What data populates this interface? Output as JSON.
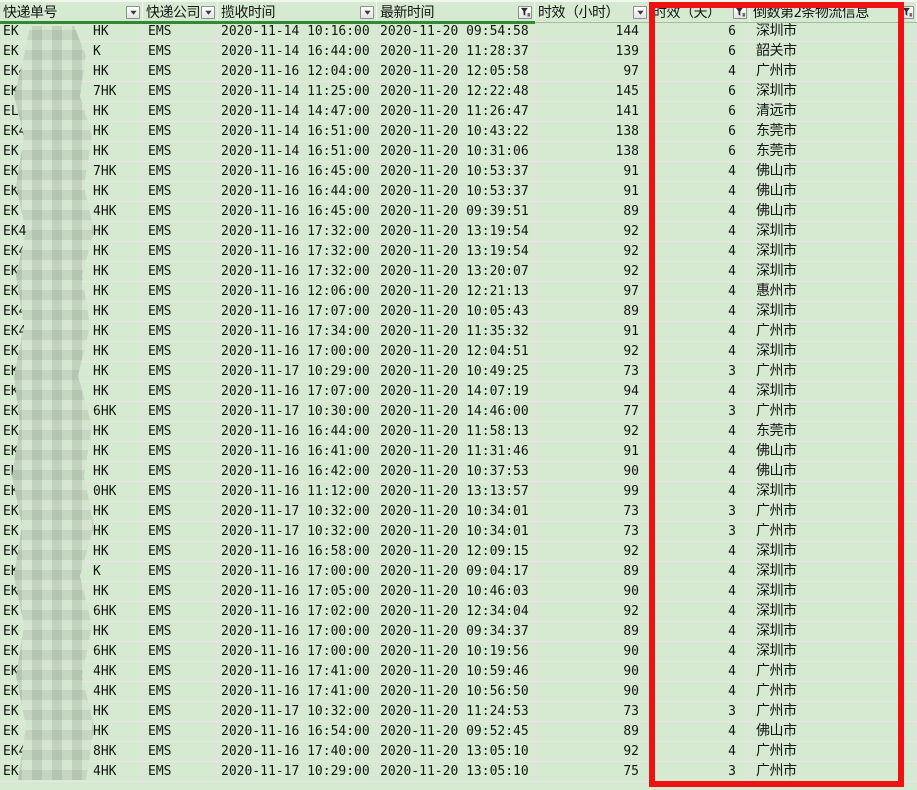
{
  "table": {
    "columns": [
      {
        "label": "快递单号",
        "filter": "dropdown"
      },
      {
        "label": "快递公司",
        "filter": "dropdown"
      },
      {
        "label": "揽收时间",
        "filter": "dropdown"
      },
      {
        "label": "最新时间",
        "filter": "funnel"
      },
      {
        "label": "时效（小时）",
        "filter": "dropdown"
      },
      {
        "label": "时效（天）",
        "filter": "funnel"
      },
      {
        "label": "倒数第2条物流信息",
        "filter": "funnel"
      }
    ],
    "rows": [
      {
        "tracking_prefix": "EK",
        "tracking_suffix": "HK",
        "company": "EMS",
        "pickup_time": "2020-11-14 10:16:00",
        "latest_time": "2020-11-20 09:54:58",
        "hours": "144",
        "days": "6",
        "city": "深圳市"
      },
      {
        "tracking_prefix": "EK",
        "tracking_suffix": "K",
        "company": "EMS",
        "pickup_time": "2020-11-14 16:44:00",
        "latest_time": "2020-11-20 11:28:37",
        "hours": "139",
        "days": "6",
        "city": "韶关市"
      },
      {
        "tracking_prefix": "EK4",
        "tracking_suffix": "HK",
        "company": "EMS",
        "pickup_time": "2020-11-16 12:04:00",
        "latest_time": "2020-11-20 12:05:58",
        "hours": "97",
        "days": "4",
        "city": "广州市"
      },
      {
        "tracking_prefix": "EK",
        "tracking_suffix": "7HK",
        "company": "EMS",
        "pickup_time": "2020-11-14 11:25:00",
        "latest_time": "2020-11-20 12:22:48",
        "hours": "145",
        "days": "6",
        "city": "深圳市"
      },
      {
        "tracking_prefix": "EL6",
        "tracking_suffix": "HK",
        "company": "EMS",
        "pickup_time": "2020-11-14 14:47:00",
        "latest_time": "2020-11-20 11:26:47",
        "hours": "141",
        "days": "6",
        "city": "清远市"
      },
      {
        "tracking_prefix": "EK4",
        "tracking_suffix": "HK",
        "company": "EMS",
        "pickup_time": "2020-11-14 16:51:00",
        "latest_time": "2020-11-20 10:43:22",
        "hours": "138",
        "days": "6",
        "city": "东莞市"
      },
      {
        "tracking_prefix": "EK",
        "tracking_suffix": "HK",
        "company": "EMS",
        "pickup_time": "2020-11-14 16:51:00",
        "latest_time": "2020-11-20 10:31:06",
        "hours": "138",
        "days": "6",
        "city": "东莞市"
      },
      {
        "tracking_prefix": "EK4",
        "tracking_suffix": "7HK",
        "company": "EMS",
        "pickup_time": "2020-11-16 16:45:00",
        "latest_time": "2020-11-20 10:53:37",
        "hours": "91",
        "days": "4",
        "city": "佛山市"
      },
      {
        "tracking_prefix": "EK4",
        "tracking_suffix": "HK",
        "company": "EMS",
        "pickup_time": "2020-11-16 16:44:00",
        "latest_time": "2020-11-20 10:53:37",
        "hours": "91",
        "days": "4",
        "city": "佛山市"
      },
      {
        "tracking_prefix": "EK",
        "tracking_suffix": "4HK",
        "company": "EMS",
        "pickup_time": "2020-11-16 16:45:00",
        "latest_time": "2020-11-20 09:39:51",
        "hours": "89",
        "days": "4",
        "city": "佛山市"
      },
      {
        "tracking_prefix": "EK4",
        "tracking_suffix": "HK",
        "company": "EMS",
        "pickup_time": "2020-11-16 17:32:00",
        "latest_time": "2020-11-20 13:19:54",
        "hours": "92",
        "days": "4",
        "city": "深圳市"
      },
      {
        "tracking_prefix": "EK4",
        "tracking_suffix": "HK",
        "company": "EMS",
        "pickup_time": "2020-11-16 17:32:00",
        "latest_time": "2020-11-20 13:19:54",
        "hours": "92",
        "days": "4",
        "city": "深圳市"
      },
      {
        "tracking_prefix": "EK4",
        "tracking_suffix": "HK",
        "company": "EMS",
        "pickup_time": "2020-11-16 17:32:00",
        "latest_time": "2020-11-20 13:20:07",
        "hours": "92",
        "days": "4",
        "city": "深圳市"
      },
      {
        "tracking_prefix": "EK4",
        "tracking_suffix": "HK",
        "company": "EMS",
        "pickup_time": "2020-11-16 12:06:00",
        "latest_time": "2020-11-20 12:21:13",
        "hours": "97",
        "days": "4",
        "city": "惠州市"
      },
      {
        "tracking_prefix": "EK4",
        "tracking_suffix": "HK",
        "company": "EMS",
        "pickup_time": "2020-11-16 17:07:00",
        "latest_time": "2020-11-20 10:05:43",
        "hours": "89",
        "days": "4",
        "city": "深圳市"
      },
      {
        "tracking_prefix": "EK4",
        "tracking_suffix": "HK",
        "company": "EMS",
        "pickup_time": "2020-11-16 17:34:00",
        "latest_time": "2020-11-20 11:35:32",
        "hours": "91",
        "days": "4",
        "city": "广州市"
      },
      {
        "tracking_prefix": "EK4",
        "tracking_suffix": "HK",
        "company": "EMS",
        "pickup_time": "2020-11-16 17:00:00",
        "latest_time": "2020-11-20 12:04:51",
        "hours": "92",
        "days": "4",
        "city": "深圳市"
      },
      {
        "tracking_prefix": "EK4",
        "tracking_suffix": "HK",
        "company": "EMS",
        "pickup_time": "2020-11-17 10:29:00",
        "latest_time": "2020-11-20 10:49:25",
        "hours": "73",
        "days": "3",
        "city": "广州市"
      },
      {
        "tracking_prefix": "EK",
        "tracking_suffix": "HK",
        "company": "EMS",
        "pickup_time": "2020-11-16 17:07:00",
        "latest_time": "2020-11-20 14:07:19",
        "hours": "94",
        "days": "4",
        "city": "深圳市"
      },
      {
        "tracking_prefix": "EK",
        "tracking_suffix": "6HK",
        "company": "EMS",
        "pickup_time": "2020-11-17 10:30:00",
        "latest_time": "2020-11-20 14:46:00",
        "hours": "77",
        "days": "3",
        "city": "广州市"
      },
      {
        "tracking_prefix": "EK4",
        "tracking_suffix": "HK",
        "company": "EMS",
        "pickup_time": "2020-11-16 16:44:00",
        "latest_time": "2020-11-20 11:58:13",
        "hours": "92",
        "days": "4",
        "city": "东莞市"
      },
      {
        "tracking_prefix": "EK4",
        "tracking_suffix": "HK",
        "company": "EMS",
        "pickup_time": "2020-11-16 16:41:00",
        "latest_time": "2020-11-20 11:31:46",
        "hours": "91",
        "days": "4",
        "city": "佛山市"
      },
      {
        "tracking_prefix": "EK",
        "tracking_suffix": "HK",
        "company": "EMS",
        "pickup_time": "2020-11-16 16:42:00",
        "latest_time": "2020-11-20 10:37:53",
        "hours": "90",
        "days": "4",
        "city": "佛山市"
      },
      {
        "tracking_prefix": "EK",
        "tracking_suffix": "0HK",
        "company": "EMS",
        "pickup_time": "2020-11-16 11:12:00",
        "latest_time": "2020-11-20 13:13:57",
        "hours": "99",
        "days": "4",
        "city": "深圳市"
      },
      {
        "tracking_prefix": "EK",
        "tracking_suffix": "HK",
        "company": "EMS",
        "pickup_time": "2020-11-17 10:32:00",
        "latest_time": "2020-11-20 10:34:01",
        "hours": "73",
        "days": "3",
        "city": "广州市"
      },
      {
        "tracking_prefix": "EK",
        "tracking_suffix": "HK",
        "company": "EMS",
        "pickup_time": "2020-11-17 10:32:00",
        "latest_time": "2020-11-20 10:34:01",
        "hours": "73",
        "days": "3",
        "city": "广州市"
      },
      {
        "tracking_prefix": "EK",
        "tracking_suffix": "HK",
        "company": "EMS",
        "pickup_time": "2020-11-16 16:58:00",
        "latest_time": "2020-11-20 12:09:15",
        "hours": "92",
        "days": "4",
        "city": "深圳市"
      },
      {
        "tracking_prefix": "EK4",
        "tracking_suffix": "K",
        "company": "EMS",
        "pickup_time": "2020-11-16 17:00:00",
        "latest_time": "2020-11-20 09:04:17",
        "hours": "89",
        "days": "4",
        "city": "深圳市"
      },
      {
        "tracking_prefix": "EK",
        "tracking_suffix": "HK",
        "company": "EMS",
        "pickup_time": "2020-11-16 17:05:00",
        "latest_time": "2020-11-20 10:46:03",
        "hours": "90",
        "days": "4",
        "city": "深圳市"
      },
      {
        "tracking_prefix": "EK",
        "tracking_suffix": "6HK",
        "company": "EMS",
        "pickup_time": "2020-11-16 17:02:00",
        "latest_time": "2020-11-20 12:34:04",
        "hours": "92",
        "days": "4",
        "city": "深圳市"
      },
      {
        "tracking_prefix": "EK",
        "tracking_suffix": "HK",
        "company": "EMS",
        "pickup_time": "2020-11-16 17:00:00",
        "latest_time": "2020-11-20 09:34:37",
        "hours": "89",
        "days": "4",
        "city": "深圳市"
      },
      {
        "tracking_prefix": "EK",
        "tracking_suffix": "6HK",
        "company": "EMS",
        "pickup_time": "2020-11-16 17:00:00",
        "latest_time": "2020-11-20 10:19:56",
        "hours": "90",
        "days": "4",
        "city": "深圳市"
      },
      {
        "tracking_prefix": "EK",
        "tracking_suffix": "4HK",
        "company": "EMS",
        "pickup_time": "2020-11-16 17:41:00",
        "latest_time": "2020-11-20 10:59:46",
        "hours": "90",
        "days": "4",
        "city": "广州市"
      },
      {
        "tracking_prefix": "EK",
        "tracking_suffix": "4HK",
        "company": "EMS",
        "pickup_time": "2020-11-16 17:41:00",
        "latest_time": "2020-11-20 10:56:50",
        "hours": "90",
        "days": "4",
        "city": "广州市"
      },
      {
        "tracking_prefix": "EK",
        "tracking_suffix": "HK",
        "company": "EMS",
        "pickup_time": "2020-11-17 10:32:00",
        "latest_time": "2020-11-20 11:24:53",
        "hours": "73",
        "days": "3",
        "city": "广州市"
      },
      {
        "tracking_prefix": "EK",
        "tracking_suffix": "HK",
        "company": "EMS",
        "pickup_time": "2020-11-16 16:54:00",
        "latest_time": "2020-11-20 09:52:45",
        "hours": "89",
        "days": "4",
        "city": "佛山市"
      },
      {
        "tracking_prefix": "EK4",
        "tracking_suffix": "8HK",
        "company": "EMS",
        "pickup_time": "2020-11-16 17:40:00",
        "latest_time": "2020-11-20 13:05:10",
        "hours": "92",
        "days": "4",
        "city": "广州市"
      },
      {
        "tracking_prefix": "EK4",
        "tracking_suffix": "4HK",
        "company": "EMS",
        "pickup_time": "2020-11-17 10:29:00",
        "latest_time": "2020-11-20 13:05:10",
        "hours": "75",
        "days": "3",
        "city": "广州市"
      }
    ]
  },
  "annotation": {
    "highlight_color": "#ee1212",
    "highlighted_columns": [
      "时效（天）",
      "倒数第2条物流信息"
    ]
  },
  "colors": {
    "cell_background": "#d6ead2",
    "active_filter_underline": "#2f8a33",
    "row_separator": "#eee2ec"
  }
}
